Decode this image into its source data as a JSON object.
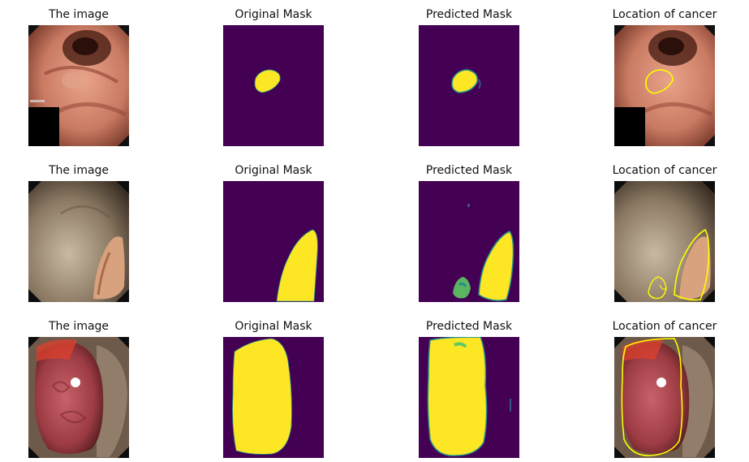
{
  "figure": {
    "rows": [
      {
        "titles": [
          "The image",
          "Original Mask",
          "Predicted Mask",
          "Location of cancer"
        ]
      },
      {
        "titles": [
          "The image",
          "Original Mask",
          "Predicted Mask",
          "Location of cancer"
        ]
      },
      {
        "titles": [
          "The image",
          "Original Mask",
          "Predicted Mask",
          "Location of cancer"
        ]
      }
    ],
    "colors": {
      "mask_background": "#440154",
      "mask_foreground": "#fde725",
      "mask_edge": "#21918c",
      "contour": "#ffff00"
    }
  }
}
